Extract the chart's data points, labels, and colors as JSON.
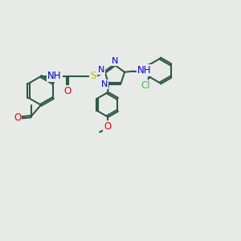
{
  "background_color": "#e8eae8",
  "bond_color": "#2d5a45",
  "bond_width": 1.5,
  "N_color": "#0000ee",
  "O_color": "#ee0000",
  "S_color": "#bbbb00",
  "Cl_color": "#44bb44",
  "text_fontsize": 8.5,
  "figsize": [
    3.0,
    3.0
  ],
  "dpi": 100,
  "xlim": [
    0,
    12
  ],
  "ylim": [
    0,
    10
  ]
}
